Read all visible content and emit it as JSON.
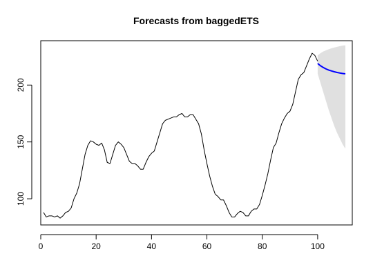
{
  "chart_data": {
    "type": "line",
    "title": "Forecasts from baggedETS",
    "xlabel": "",
    "ylabel": "",
    "xlim": [
      0,
      112.5
    ],
    "ylim": [
      77,
      239
    ],
    "x_ticks": [
      0,
      20,
      40,
      60,
      80,
      100
    ],
    "y_ticks": [
      100,
      150,
      200
    ],
    "grid": false,
    "legend": "none",
    "series": [
      {
        "role": "observed",
        "color": "#000000",
        "x": [
          1,
          2,
          3,
          4,
          5,
          6,
          7,
          8,
          9,
          10,
          11,
          12,
          13,
          14,
          15,
          16,
          17,
          18,
          19,
          20,
          21,
          22,
          23,
          24,
          25,
          26,
          27,
          28,
          29,
          30,
          31,
          32,
          33,
          34,
          35,
          36,
          37,
          38,
          39,
          40,
          41,
          42,
          43,
          44,
          45,
          46,
          47,
          48,
          49,
          50,
          51,
          52,
          53,
          54,
          55,
          56,
          57,
          58,
          59,
          60,
          61,
          62,
          63,
          64,
          65,
          66,
          67,
          68,
          69,
          70,
          71,
          72,
          73,
          74,
          75,
          76,
          77,
          78,
          79,
          80,
          81,
          82,
          83,
          84,
          85,
          86,
          87,
          88,
          89,
          90,
          91,
          92,
          93,
          94,
          95,
          96,
          97,
          98,
          99,
          100
        ],
        "y": [
          88,
          84,
          85,
          85,
          84,
          85,
          83,
          85,
          88,
          89,
          92,
          100,
          105,
          113,
          126,
          139,
          147,
          151,
          150,
          148,
          147,
          149,
          143,
          132,
          131,
          139,
          147,
          150,
          148,
          145,
          139,
          133,
          131,
          131,
          129,
          126,
          126,
          132,
          137,
          140,
          142,
          150,
          158,
          166,
          169,
          170,
          171,
          172,
          172,
          174,
          175,
          172,
          172,
          174,
          174,
          170,
          166,
          157,
          143,
          131,
          120,
          111,
          104,
          102,
          99,
          99,
          94,
          88,
          84,
          84,
          87,
          89,
          88,
          85,
          85,
          89,
          91,
          91,
          95,
          103,
          112,
          122,
          134,
          145,
          149,
          158,
          166,
          171,
          175,
          177,
          183,
          194,
          205,
          209,
          211,
          217,
          223,
          228,
          226,
          221
        ]
      },
      {
        "role": "forecast",
        "color": "#0000ff",
        "x": [
          100,
          101,
          102,
          103,
          104,
          105,
          106,
          107,
          108,
          109,
          110
        ],
        "y": [
          219,
          217,
          215.5,
          214.2,
          213.2,
          212.4,
          211.7,
          211.1,
          210.6,
          210.2,
          209.9
        ]
      },
      {
        "role": "prediction-interval",
        "color": "#e0e0e0",
        "x": [
          100,
          101,
          102,
          103,
          104,
          105,
          106,
          107,
          108,
          109,
          110
        ],
        "upper": [
          226,
          228,
          229.5,
          230.5,
          231.5,
          232.3,
          233,
          233.6,
          234.2,
          234.7,
          235
        ],
        "lower": [
          210,
          202,
          194,
          186,
          178,
          171,
          164,
          158,
          153,
          148,
          144
        ]
      }
    ]
  }
}
